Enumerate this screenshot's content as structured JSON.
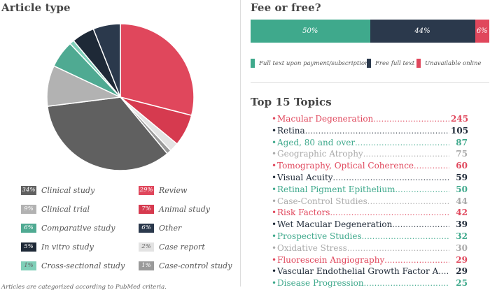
{
  "chart_data": [
    {
      "type": "pie",
      "title": "Article type",
      "slices": [
        {
          "label": "Review",
          "value": 29,
          "display": "29%",
          "color": "#e0475c"
        },
        {
          "label": "Animal study",
          "value": 7,
          "display": "7%",
          "color": "#d63a4f"
        },
        {
          "label": "Case report",
          "value": 2,
          "display": "2%",
          "color": "#e3e3e3"
        },
        {
          "label": "Case-control study",
          "value": 1,
          "display": "1%",
          "color": "#9a9a9a"
        },
        {
          "label": "Clinical study",
          "value": 34,
          "display": "34%",
          "color": "#606060"
        },
        {
          "label": "Clinical trial",
          "value": 9,
          "display": "9%",
          "color": "#b2b2b2"
        },
        {
          "label": "Comparative study",
          "value": 6,
          "display": "6%",
          "color": "#4faa92"
        },
        {
          "label": "Cross-sectional study",
          "value": 1,
          "display": "1%",
          "color": "#7fcfb8"
        },
        {
          "label": "In vitro study",
          "value": 5,
          "display": "5%",
          "color": "#1e2937"
        },
        {
          "label": "Other",
          "value": 6,
          "display": "6%",
          "color": "#2b394c"
        }
      ],
      "note": "Articles are categorized according to PubMed criteria."
    },
    {
      "type": "bar",
      "title": "Fee or free?",
      "orientation": "horizontal-stacked",
      "series": [
        {
          "name": "Full text upon payment/subscription",
          "value": 50,
          "display": "50%",
          "color": "#3fa98c"
        },
        {
          "name": "Free full text",
          "value": 44,
          "display": "44%",
          "color": "#2b394c"
        },
        {
          "name": "Unavailable online",
          "value": 6,
          "display": "6%",
          "color": "#e0475c"
        }
      ]
    },
    {
      "type": "table",
      "title": "Top 15 Topics",
      "rows": [
        {
          "topic": "Macular Degeneration",
          "count": 245,
          "color": "#e0475c"
        },
        {
          "topic": "Retina",
          "count": 105,
          "color": "#1e2937"
        },
        {
          "topic": "Aged, 80 and over",
          "count": 87,
          "color": "#3fa98c"
        },
        {
          "topic": "Geographic Atrophy",
          "count": 75,
          "color": "#aaaaaa"
        },
        {
          "topic": "Tomography, Optical Coherence",
          "count": 60,
          "color": "#e0475c"
        },
        {
          "topic": "Visual Acuity",
          "count": 59,
          "color": "#1e2937"
        },
        {
          "topic": "Retinal Pigment Epithelium",
          "count": 50,
          "color": "#3fa98c"
        },
        {
          "topic": "Case-Control Studies",
          "count": 44,
          "color": "#aaaaaa"
        },
        {
          "topic": "Risk Factors",
          "count": 42,
          "color": "#e0475c"
        },
        {
          "topic": "Wet Macular Degeneration",
          "count": 39,
          "color": "#1e2937"
        },
        {
          "topic": "Prospective Studies",
          "count": 32,
          "color": "#3fa98c"
        },
        {
          "topic": "Oxidative Stress",
          "count": 30,
          "color": "#aaaaaa"
        },
        {
          "topic": "Fluorescein Angiography",
          "count": 29,
          "color": "#e0475c"
        },
        {
          "topic": "Vascular Endothelial Growth Factor A",
          "count": 29,
          "color": "#1e2937"
        },
        {
          "topic": "Disease Progression",
          "count": 25,
          "color": "#3fa98c"
        }
      ]
    }
  ]
}
